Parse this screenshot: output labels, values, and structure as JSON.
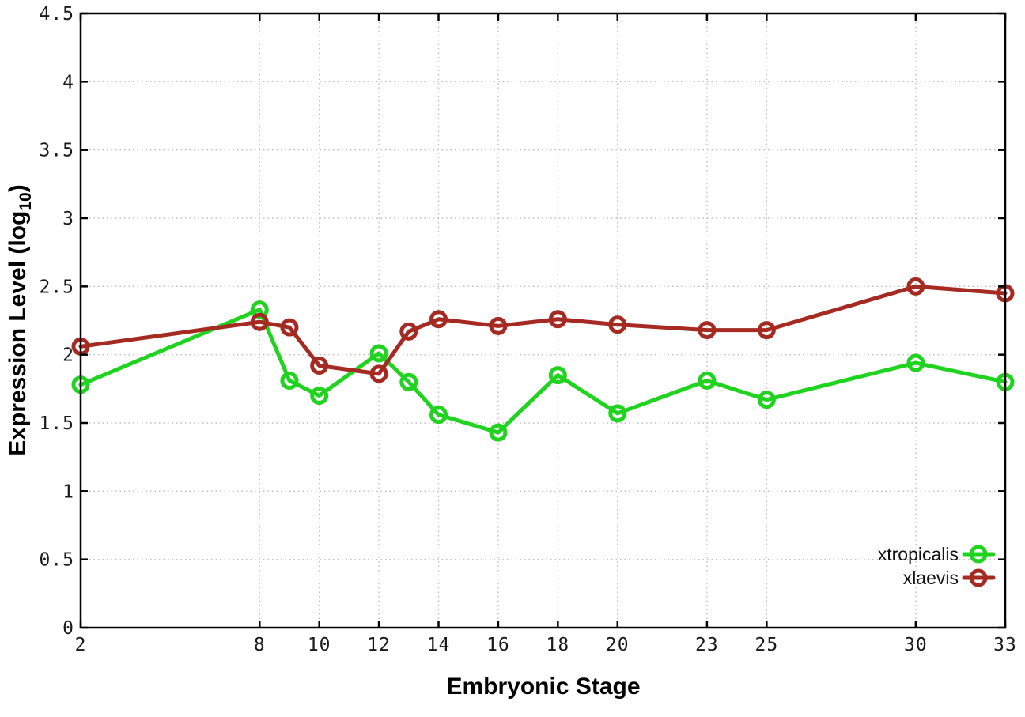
{
  "page": {
    "background": "#ffffff"
  },
  "chart_data": {
    "type": "line",
    "title": "",
    "xlabel": "Embryonic Stage",
    "ylabel": "Expression Level (log10)",
    "ylabel_parts": {
      "main": "Expression Level (log",
      "sub": "10",
      "close": ")"
    },
    "x": [
      2,
      8,
      9,
      10,
      12,
      13,
      14,
      16,
      18,
      20,
      23,
      25,
      30,
      33
    ],
    "xlim": [
      2,
      33
    ],
    "x_ticks": [
      2,
      8,
      10,
      12,
      14,
      16,
      18,
      20,
      23,
      25,
      30,
      33
    ],
    "ylim": [
      0,
      4.5
    ],
    "y_ticks": [
      0,
      0.5,
      1,
      1.5,
      2,
      2.5,
      3,
      3.5,
      4,
      4.5
    ],
    "grid": true,
    "legend": {
      "position": "inside-bottom-right",
      "entries": [
        "xtropicalis",
        "xlaevis"
      ]
    },
    "series": [
      {
        "name": "xtropicalis",
        "color": "#1fd31f",
        "marker": "open-circle",
        "values": [
          1.78,
          2.33,
          1.81,
          1.7,
          2.01,
          1.8,
          1.56,
          1.43,
          1.85,
          1.57,
          1.81,
          1.67,
          1.94,
          1.8
        ]
      },
      {
        "name": "xlaevis",
        "color": "#a52a21",
        "marker": "open-circle",
        "values": [
          2.06,
          2.24,
          2.2,
          1.92,
          1.86,
          2.17,
          2.26,
          2.21,
          2.26,
          2.22,
          2.18,
          2.18,
          2.5,
          2.45
        ]
      }
    ],
    "colors": {
      "grid": "#bdbdbd",
      "border": "#000000",
      "tick_text": "#1a1a1a"
    }
  }
}
